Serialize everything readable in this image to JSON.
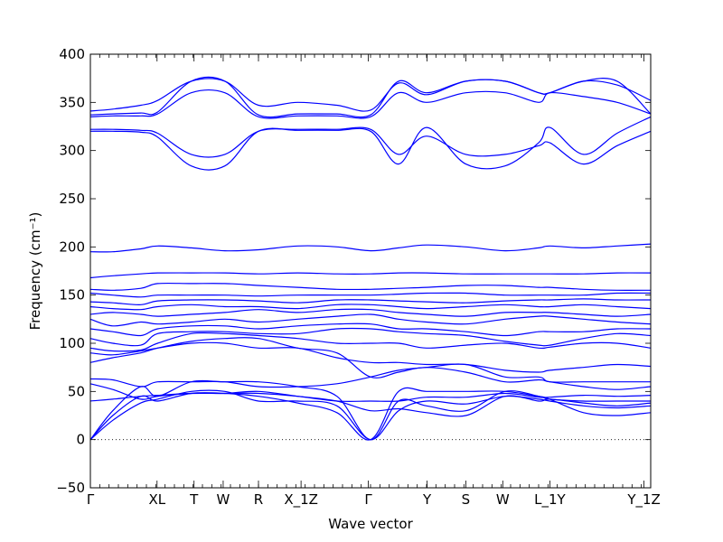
{
  "chart_data": {
    "type": "line",
    "xlabel": "Wave vector",
    "ylabel": "Frequency (cm⁻¹)",
    "ylim": [
      -50,
      400
    ],
    "yticks": [
      -50,
      0,
      50,
      100,
      150,
      200,
      250,
      300,
      350,
      400
    ],
    "xlim": [
      0,
      100
    ],
    "x_ticks": [
      {
        "label": "Γ",
        "x": 0
      },
      {
        "label": "XL",
        "x": 11.9
      },
      {
        "label": "T",
        "x": 18.5
      },
      {
        "label": "W",
        "x": 23.7
      },
      {
        "label": "R",
        "x": 30.0
      },
      {
        "label": "X_1Z",
        "x": 37.6
      },
      {
        "label": "Γ",
        "x": 49.6
      },
      {
        "label": "Y",
        "x": 60.1
      },
      {
        "label": "S",
        "x": 67.0
      },
      {
        "label": "W",
        "x": 73.6
      },
      {
        "label": "L_1Y",
        "x": 82.0
      },
      {
        "label": "Y_1Z",
        "x": 98.8
      }
    ],
    "zero_line": 0,
    "series_style": {
      "color": "#0000ff"
    },
    "series": [
      {
        "x": [
          0,
          4,
          9,
          12,
          18,
          24,
          30,
          37,
          44,
          50,
          55,
          60,
          67,
          74,
          80,
          82,
          88,
          94,
          100
        ],
        "y": [
          0,
          20,
          38,
          42,
          50,
          50,
          40,
          40,
          35,
          0,
          30,
          40,
          37,
          45,
          42,
          40,
          35,
          33,
          35
        ]
      },
      {
        "x": [
          0,
          4,
          9,
          12,
          18,
          24,
          30,
          37,
          44,
          50,
          55,
          60,
          67,
          74,
          80,
          82,
          88,
          94,
          100
        ],
        "y": [
          0,
          25,
          45,
          40,
          48,
          48,
          45,
          38,
          28,
          0,
          50,
          50,
          50,
          50,
          45,
          42,
          28,
          25,
          28
        ]
      },
      {
        "x": [
          0,
          4,
          9,
          12,
          18,
          24,
          30,
          37,
          44,
          50,
          55,
          60,
          67,
          74,
          80,
          82,
          88,
          94,
          100
        ],
        "y": [
          0,
          30,
          55,
          45,
          60,
          60,
          60,
          55,
          45,
          0,
          40,
          35,
          30,
          50,
          45,
          42,
          40,
          40,
          40
        ]
      },
      {
        "x": [
          0,
          4,
          9,
          12,
          18,
          24,
          30,
          37,
          44,
          50,
          55,
          60,
          67,
          74,
          80,
          82,
          88,
          94,
          100
        ],
        "y": [
          40,
          42,
          45,
          46,
          48,
          48,
          48,
          45,
          40,
          30,
          32,
          28,
          25,
          45,
          40,
          42,
          38,
          35,
          38
        ]
      },
      {
        "x": [
          0,
          4,
          9,
          12,
          18,
          24,
          30,
          37,
          44,
          50,
          55,
          60,
          67,
          74,
          80,
          82,
          88,
          94,
          100
        ],
        "y": [
          58,
          52,
          42,
          45,
          48,
          48,
          50,
          45,
          40,
          40,
          40,
          44,
          44,
          48,
          44,
          44,
          46,
          45,
          46
        ]
      },
      {
        "x": [
          0,
          4,
          9,
          12,
          18,
          24,
          30,
          37,
          44,
          50,
          55,
          60,
          67,
          74,
          80,
          82,
          88,
          94,
          100
        ],
        "y": [
          63,
          62,
          55,
          60,
          60,
          60,
          55,
          55,
          58,
          65,
          72,
          75,
          78,
          65,
          65,
          60,
          60,
          60,
          60
        ]
      },
      {
        "x": [
          0,
          4,
          9,
          12,
          18,
          24,
          30,
          37,
          44,
          50,
          55,
          60,
          67,
          74,
          80,
          82,
          88,
          94,
          100
        ],
        "y": [
          80,
          85,
          90,
          95,
          102,
          105,
          105,
          95,
          90,
          65,
          70,
          75,
          70,
          60,
          62,
          60,
          55,
          52,
          55
        ]
      },
      {
        "x": [
          0,
          4,
          9,
          12,
          18,
          24,
          30,
          37,
          44,
          50,
          55,
          60,
          67,
          74,
          80,
          82,
          88,
          94,
          100
        ],
        "y": [
          90,
          88,
          92,
          95,
          100,
          100,
          95,
          95,
          85,
          80,
          80,
          78,
          78,
          72,
          70,
          72,
          75,
          78,
          76
        ]
      },
      {
        "x": [
          0,
          4,
          9,
          12,
          18,
          24,
          30,
          37,
          44,
          50,
          55,
          60,
          67,
          74,
          80,
          82,
          88,
          94,
          100
        ],
        "y": [
          95,
          92,
          93,
          100,
          110,
          110,
          108,
          105,
          100,
          100,
          100,
          95,
          98,
          100,
          95,
          96,
          100,
          100,
          95
        ]
      },
      {
        "x": [
          0,
          4,
          9,
          12,
          18,
          24,
          30,
          37,
          44,
          50,
          55,
          60,
          67,
          74,
          80,
          82,
          88,
          94,
          100
        ],
        "y": [
          105,
          100,
          98,
          110,
          112,
          112,
          110,
          110,
          115,
          115,
          112,
          110,
          108,
          102,
          98,
          98,
          105,
          110,
          108
        ]
      },
      {
        "x": [
          0,
          4,
          9,
          12,
          18,
          24,
          30,
          37,
          44,
          50,
          55,
          60,
          67,
          74,
          80,
          82,
          88,
          94,
          100
        ],
        "y": [
          115,
          112,
          108,
          115,
          118,
          118,
          115,
          118,
          120,
          120,
          115,
          115,
          112,
          108,
          112,
          112,
          112,
          115,
          115
        ]
      },
      {
        "x": [
          0,
          4,
          9,
          12,
          18,
          24,
          30,
          37,
          44,
          50,
          55,
          60,
          67,
          74,
          80,
          82,
          88,
          94,
          100
        ],
        "y": [
          125,
          118,
          122,
          120,
          122,
          125,
          122,
          125,
          128,
          130,
          125,
          122,
          120,
          125,
          128,
          128,
          125,
          122,
          120
        ]
      },
      {
        "x": [
          0,
          4,
          9,
          12,
          18,
          24,
          30,
          37,
          44,
          50,
          55,
          60,
          67,
          74,
          80,
          82,
          88,
          94,
          100
        ],
        "y": [
          130,
          132,
          130,
          128,
          130,
          132,
          135,
          132,
          135,
          135,
          132,
          130,
          128,
          132,
          132,
          132,
          130,
          128,
          130
        ]
      },
      {
        "x": [
          0,
          4,
          9,
          12,
          18,
          24,
          30,
          37,
          44,
          50,
          55,
          60,
          67,
          74,
          80,
          82,
          88,
          94,
          100
        ],
        "y": [
          138,
          136,
          135,
          138,
          140,
          138,
          138,
          136,
          140,
          140,
          138,
          136,
          138,
          140,
          138,
          138,
          140,
          138,
          136
        ]
      },
      {
        "x": [
          0,
          4,
          9,
          12,
          18,
          24,
          30,
          37,
          44,
          50,
          55,
          60,
          67,
          74,
          80,
          82,
          88,
          94,
          100
        ],
        "y": [
          143,
          142,
          140,
          144,
          145,
          145,
          144,
          142,
          145,
          145,
          144,
          143,
          142,
          144,
          145,
          145,
          146,
          145,
          145
        ]
      },
      {
        "x": [
          0,
          4,
          9,
          12,
          18,
          24,
          30,
          37,
          44,
          50,
          55,
          60,
          67,
          74,
          80,
          82,
          88,
          94,
          100
        ],
        "y": [
          152,
          150,
          148,
          150,
          150,
          150,
          149,
          150,
          150,
          150,
          151,
          152,
          152,
          150,
          150,
          150,
          150,
          152,
          152
        ]
      },
      {
        "x": [
          0,
          4,
          9,
          12,
          18,
          24,
          30,
          37,
          44,
          50,
          55,
          60,
          67,
          74,
          80,
          82,
          88,
          94,
          100
        ],
        "y": [
          156,
          155,
          157,
          162,
          162,
          162,
          160,
          158,
          156,
          156,
          157,
          158,
          160,
          160,
          158,
          158,
          156,
          155,
          155
        ]
      },
      {
        "x": [
          0,
          4,
          9,
          12,
          18,
          24,
          30,
          37,
          44,
          50,
          55,
          60,
          67,
          74,
          80,
          82,
          88,
          94,
          100
        ],
        "y": [
          168,
          170,
          172,
          173,
          173,
          173,
          172,
          173,
          172,
          172,
          173,
          173,
          172,
          172,
          172,
          172,
          172,
          173,
          173
        ]
      },
      {
        "x": [
          0,
          4,
          9,
          12,
          18,
          24,
          30,
          37,
          44,
          50,
          55,
          60,
          67,
          74,
          80,
          82,
          88,
          94,
          100
        ],
        "y": [
          195,
          195,
          198,
          201,
          199,
          196,
          197,
          201,
          200,
          196,
          199,
          202,
          200,
          196,
          199,
          201,
          199,
          201,
          203
        ]
      },
      {
        "x": [
          0,
          4,
          9,
          12,
          18,
          24,
          30,
          37,
          44,
          50,
          55,
          60,
          67,
          74,
          80,
          82,
          88,
          94,
          100
        ],
        "y": [
          322,
          322,
          321,
          318,
          296,
          296,
          320,
          322,
          322,
          322,
          296,
          315,
          296,
          296,
          305,
          308,
          286,
          305,
          320
        ]
      },
      {
        "x": [
          0,
          4,
          9,
          12,
          18,
          24,
          30,
          37,
          44,
          50,
          55,
          60,
          67,
          74,
          80,
          82,
          88,
          94,
          100
        ],
        "y": [
          320,
          320,
          319,
          314,
          284,
          284,
          320,
          321,
          321,
          320,
          286,
          324,
          286,
          284,
          308,
          324,
          296,
          318,
          335
        ]
      },
      {
        "x": [
          0,
          4,
          9,
          12,
          18,
          24,
          30,
          37,
          44,
          50,
          55,
          60,
          67,
          74,
          80,
          82,
          88,
          94,
          100
        ],
        "y": [
          335,
          336,
          336,
          338,
          360,
          360,
          335,
          336,
          336,
          335,
          360,
          350,
          360,
          360,
          350,
          360,
          356,
          350,
          338
        ]
      },
      {
        "x": [
          0,
          4,
          9,
          12,
          18,
          24,
          30,
          37,
          44,
          50,
          55,
          60,
          67,
          74,
          80,
          82,
          88,
          94,
          100
        ],
        "y": [
          337,
          338,
          339,
          340,
          372,
          372,
          337,
          338,
          338,
          337,
          372,
          360,
          372,
          372,
          360,
          360,
          372,
          372,
          338
        ]
      },
      {
        "x": [
          0,
          4,
          9,
          12,
          18,
          24,
          30,
          37,
          44,
          50,
          55,
          60,
          67,
          74,
          80,
          82,
          88,
          94,
          100
        ],
        "y": [
          341,
          343,
          347,
          352,
          372,
          372,
          347,
          350,
          347,
          342,
          370,
          358,
          372,
          372,
          360,
          360,
          372,
          368,
          352
        ]
      }
    ]
  }
}
